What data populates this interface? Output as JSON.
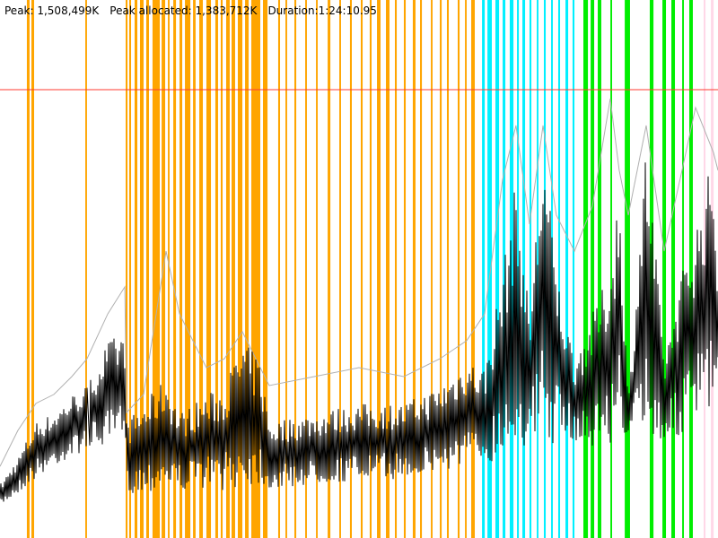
{
  "header": {
    "peak": "Peak: 1,508,499K",
    "peak_allocated": "Peak allocated: 1,383,712K",
    "duration": "Duration:1:24:10.95"
  },
  "chart_data": {
    "type": "line",
    "title": "",
    "xlabel": "",
    "ylabel": "",
    "x_unit": "seconds",
    "y_unit": "K",
    "xlim": [
      0,
      5051
    ],
    "ylim": [
      0,
      1810000
    ],
    "grid": false,
    "peak_line": {
      "value": 1508499,
      "color": "#ff3b30"
    },
    "colors": {
      "allocated": "#000000",
      "used": "#b0b0b0",
      "orange": "#ffa500",
      "cyan": "#00f0ff",
      "green": "#00ee00",
      "pink": "#ffd8e8"
    },
    "x": [
      0,
      126,
      253,
      379,
      505,
      612,
      758,
      878,
      890,
      1010,
      1168,
      1263,
      1452,
      1578,
      1705,
      1831,
      1894,
      2210,
      2525,
      2841,
      3094,
      3283,
      3409,
      3536,
      3630,
      3725,
      3820,
      3914,
      4041,
      4167,
      4293,
      4356,
      4420,
      4546,
      4672,
      4798,
      4893,
      5019,
      5051
    ],
    "series": [
      {
        "key": "allocated_max",
        "values": [
          181000,
          272000,
          392000,
          422000,
          483000,
          513000,
          664000,
          694000,
          392000,
          453000,
          543000,
          422000,
          483000,
          513000,
          664000,
          603000,
          392000,
          422000,
          453000,
          453000,
          513000,
          603000,
          573000,
          905000,
          1207000,
          754000,
          1358000,
          905000,
          603000,
          754000,
          905000,
          1207000,
          453000,
          1358000,
          603000,
          905000,
          1056000,
          1297000,
          905000
        ]
      },
      {
        "key": "allocated_min",
        "values": [
          105000,
          150000,
          200000,
          241000,
          270000,
          302000,
          302000,
          332000,
          151000,
          151000,
          170000,
          160000,
          170000,
          160000,
          170000,
          180000,
          160000,
          180000,
          190000,
          200000,
          220000,
          240000,
          250000,
          270000,
          300000,
          310000,
          300000,
          320000,
          330000,
          300000,
          320000,
          330000,
          350000,
          300000,
          330000,
          340000,
          380000,
          420000,
          450000
        ]
      },
      {
        "key": "used",
        "values": [
          241000,
          362000,
          453000,
          483000,
          543000,
          603000,
          754000,
          845000,
          422000,
          483000,
          965000,
          754000,
          573000,
          603000,
          694000,
          573000,
          513000,
          543000,
          573000,
          543000,
          603000,
          664000,
          754000,
          1207000,
          1388000,
          1056000,
          1388000,
          1086000,
          965000,
          1116000,
          1478000,
          1237000,
          1086000,
          1388000,
          965000,
          1237000,
          1448000,
          1297000,
          1237000
        ]
      }
    ],
    "bands": {
      "orange": [
        [
          189,
          208
        ],
        [
          221,
          240
        ],
        [
          600,
          612
        ],
        [
          884,
          897
        ],
        [
          909,
          922
        ],
        [
          947,
          966
        ],
        [
          985,
          1010
        ],
        [
          1029,
          1048
        ],
        [
          1073,
          1124
        ],
        [
          1137,
          1162
        ],
        [
          1181,
          1193
        ],
        [
          1219,
          1238
        ],
        [
          1263,
          1282
        ],
        [
          1301,
          1339
        ],
        [
          1358,
          1376
        ],
        [
          1402,
          1427
        ],
        [
          1452,
          1484
        ],
        [
          1515,
          1534
        ],
        [
          1553,
          1566
        ],
        [
          1591,
          1616
        ],
        [
          1629,
          1654
        ],
        [
          1673,
          1705
        ],
        [
          1724,
          1749
        ],
        [
          1768,
          1831
        ],
        [
          1850,
          1882
        ],
        [
          1957,
          1970
        ],
        [
          2008,
          2020
        ],
        [
          2071,
          2084
        ],
        [
          2147,
          2159
        ],
        [
          2223,
          2235
        ],
        [
          2305,
          2324
        ],
        [
          2387,
          2399
        ],
        [
          2462,
          2475
        ],
        [
          2538,
          2551
        ],
        [
          2601,
          2614
        ],
        [
          2652,
          2677
        ],
        [
          2715,
          2740
        ],
        [
          2778,
          2791
        ],
        [
          2841,
          2854
        ],
        [
          2904,
          2923
        ],
        [
          2955,
          2968
        ],
        [
          3031,
          3043
        ],
        [
          3094,
          3107
        ],
        [
          3144,
          3157
        ],
        [
          3220,
          3233
        ],
        [
          3271,
          3283
        ],
        [
          3315,
          3340
        ]
      ],
      "cyan": [
        [
          3391,
          3410
        ],
        [
          3429,
          3460
        ],
        [
          3485,
          3511
        ],
        [
          3536,
          3555
        ],
        [
          3586,
          3612
        ],
        [
          3637,
          3650
        ],
        [
          3675,
          3694
        ],
        [
          3725,
          3738
        ],
        [
          3776,
          3788
        ],
        [
          3826,
          3839
        ],
        [
          3877,
          3889
        ],
        [
          3927,
          3940
        ],
        [
          3978,
          3997
        ],
        [
          4028,
          4041
        ]
      ],
      "green": [
        [
          4104,
          4136
        ],
        [
          4155,
          4180
        ],
        [
          4205,
          4230
        ],
        [
          4294,
          4306
        ],
        [
          4395,
          4432
        ],
        [
          4571,
          4597
        ],
        [
          4660,
          4685
        ],
        [
          4723,
          4748
        ],
        [
          4799,
          4811
        ],
        [
          4849,
          4874
        ]
      ],
      "pink": [
        [
          4950,
          4963
        ],
        [
          5001,
          5020
        ]
      ]
    }
  }
}
